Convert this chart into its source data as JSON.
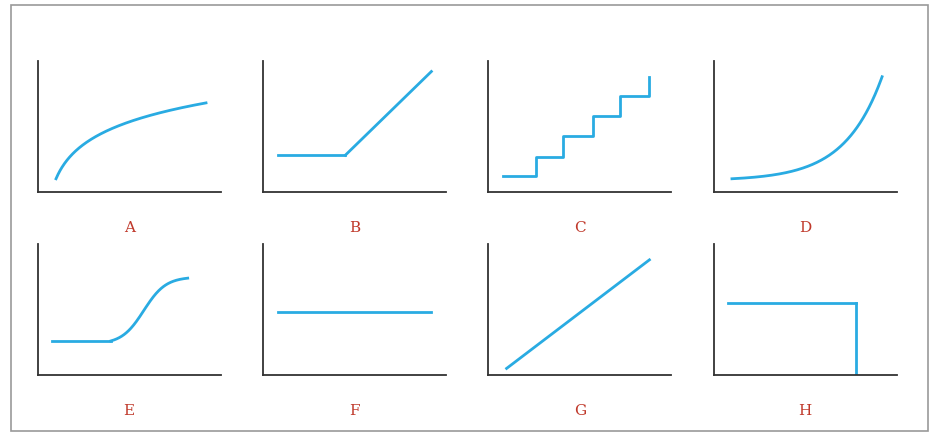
{
  "line_color": "#29ABE2",
  "line_width": 2.0,
  "axis_color": "#333333",
  "label_color": "#c0392b",
  "label_fontsize": 11,
  "background_color": "#ffffff",
  "border_color": "#999999",
  "fig_width": 9.39,
  "fig_height": 4.36,
  "panel_labels": [
    "A",
    "B",
    "C",
    "D",
    "E",
    "F",
    "G",
    "H"
  ]
}
